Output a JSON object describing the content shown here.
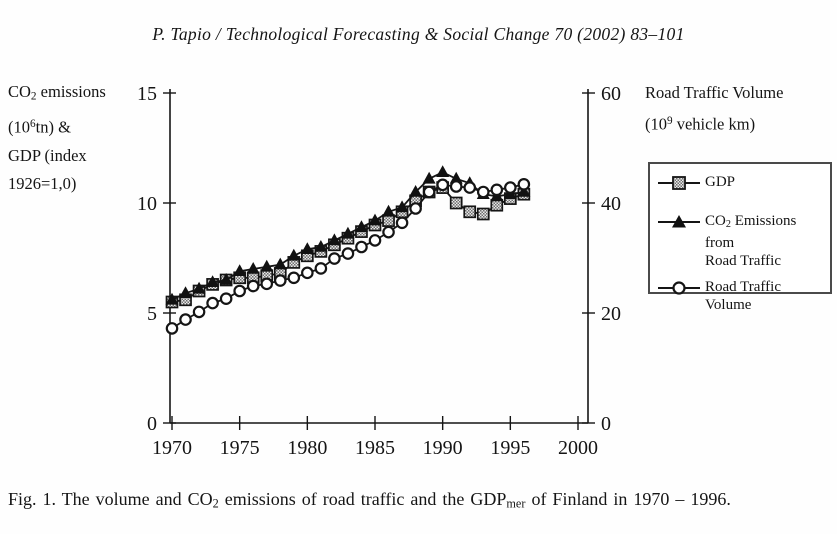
{
  "header": {
    "text": "P. Tapio / Technological Forecasting & Social Change 70 (2002) 83–101"
  },
  "axis_titles": {
    "left": {
      "l1a": "CO",
      "l1sub": "2",
      "l1b": " emissions",
      "l2a": "(10",
      "l2sup": "6",
      "l2b": "tn) &",
      "l3": "GDP (index",
      "l4": "1926=1,0)"
    },
    "right": {
      "l1": "Road Traffic Volume",
      "l2a": "(10",
      "l2sup": "9",
      "l2b": " vehicle km)"
    }
  },
  "legend": {
    "gdp": {
      "label": "GDP",
      "marker": "square"
    },
    "co2": {
      "l1a": "CO",
      "l1sub": "2",
      "l1b": " Emissions from",
      "l2": "Road Traffic",
      "marker": "triangle"
    },
    "rtv": {
      "l1": "Road Traffic",
      "l2": "Volume",
      "marker": "circle"
    }
  },
  "caption": {
    "p1": "Fig. 1. The volume and CO",
    "sub1": "2",
    "p2": " emissions of road traffic and the GDP",
    "sub2": "mer",
    "p3": " of Finland in 1970 – 1996."
  },
  "chart_data": {
    "type": "line",
    "title": "",
    "x": [
      1970,
      1971,
      1972,
      1973,
      1974,
      1975,
      1976,
      1977,
      1978,
      1979,
      1980,
      1981,
      1982,
      1983,
      1984,
      1985,
      1986,
      1987,
      1988,
      1989,
      1990,
      1991,
      1992,
      1993,
      1994,
      1995,
      1996
    ],
    "series": [
      {
        "name": "GDP",
        "axis": "left",
        "marker": "square",
        "values": [
          5.5,
          5.6,
          6.0,
          6.3,
          6.5,
          6.6,
          6.6,
          6.7,
          6.8,
          7.3,
          7.6,
          7.8,
          8.1,
          8.4,
          8.7,
          9.0,
          9.2,
          9.6,
          10.1,
          10.5,
          10.7,
          10.0,
          9.6,
          9.5,
          9.9,
          10.2,
          10.4
        ]
      },
      {
        "name": "CO2 Emissions from Road Traffic",
        "axis": "left",
        "marker": "triangle",
        "values": [
          5.6,
          5.9,
          6.1,
          6.4,
          6.5,
          6.9,
          7.0,
          7.1,
          7.2,
          7.6,
          7.9,
          8.0,
          8.3,
          8.6,
          8.9,
          9.2,
          9.6,
          9.8,
          10.5,
          11.1,
          11.4,
          11.1,
          10.9,
          10.4,
          10.3,
          10.4,
          10.5
        ]
      },
      {
        "name": "Road Traffic Volume",
        "axis": "right",
        "marker": "circle",
        "values": [
          17.2,
          18.8,
          20.2,
          21.8,
          22.6,
          24.0,
          24.9,
          25.3,
          25.9,
          26.4,
          27.3,
          28.1,
          29.9,
          30.8,
          32.0,
          33.2,
          34.7,
          36.4,
          39.0,
          42.0,
          43.3,
          43.0,
          42.8,
          42.0,
          42.4,
          42.8,
          43.4
        ]
      }
    ],
    "left_axis": {
      "label": "CO2 emissions (10^6 tn) & GDP (index 1926=1,0)",
      "ticks": [
        0,
        5,
        10,
        15
      ],
      "range": [
        0,
        15
      ]
    },
    "right_axis": {
      "label": "Road Traffic Volume (10^9 vehicle km)",
      "ticks": [
        0,
        20,
        40,
        60
      ],
      "range": [
        0,
        60
      ]
    },
    "x_axis": {
      "ticks": [
        1970,
        1975,
        1980,
        1985,
        1990,
        1995,
        2000
      ],
      "range": [
        1970,
        2000
      ]
    },
    "legend_position": "right",
    "grid": false,
    "colors": {
      "line": "#151515",
      "square_fill": "#9a9a9a",
      "triangle_fill": "#111111",
      "circle_fill": "#ffffff"
    }
  }
}
